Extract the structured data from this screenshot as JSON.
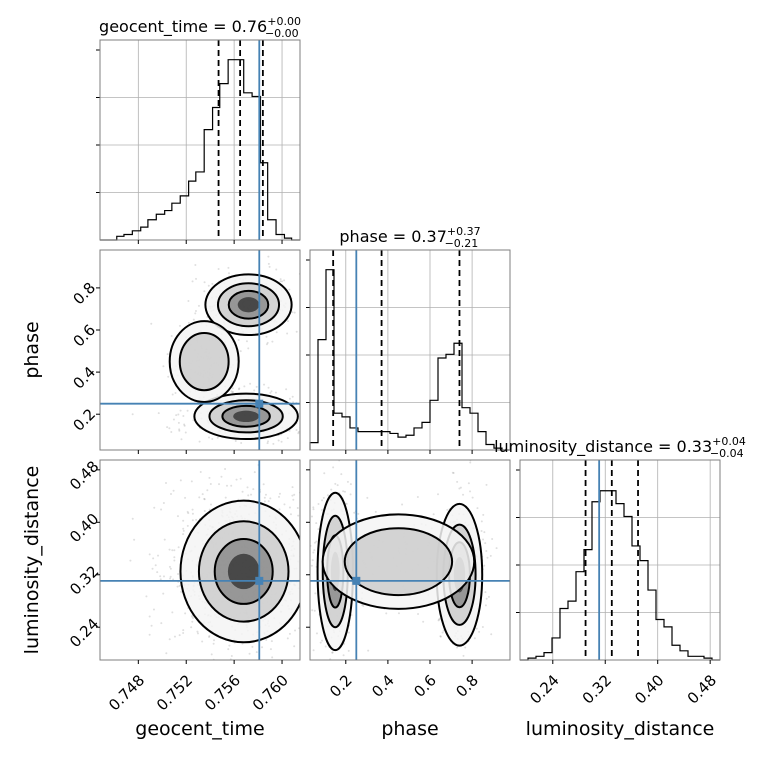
{
  "colors": {
    "truth": "#4682b4",
    "hist": "#000000",
    "grid": "#b0b0b0",
    "frame": "#7f7f7f",
    "scatter": "#808080",
    "density_levels": [
      "#f4f4f4",
      "#cccccc",
      "#8c8c8c",
      "#3a3a3a"
    ]
  },
  "chart_data": {
    "type": "corner",
    "parameters": [
      "geocent_time",
      "phase",
      "luminosity_distance"
    ],
    "axis_labels": [
      "geocent_time",
      "phase",
      "luminosity_distance"
    ],
    "ranges": {
      "geocent_time": [
        0.7448,
        0.7615
      ],
      "phase": [
        0.03,
        0.98
      ],
      "luminosity_distance": [
        0.19,
        0.495
      ]
    },
    "ticks": {
      "geocent_time": [
        0.748,
        0.752,
        0.756,
        0.76
      ],
      "phase": [
        0.2,
        0.4,
        0.6,
        0.8
      ],
      "luminosity_distance": [
        0.24,
        0.32,
        0.4,
        0.48
      ]
    },
    "tick_labels": {
      "geocent_time": [
        "0.748",
        "0.752",
        "0.756",
        "0.760"
      ],
      "phase": [
        "0.2",
        "0.4",
        "0.6",
        "0.8"
      ],
      "luminosity_distance": [
        "0.24",
        "0.32",
        "0.40",
        "0.48"
      ]
    },
    "truths": {
      "geocent_time": 0.7581,
      "phase": 0.25,
      "luminosity_distance": 0.3107
    },
    "titles": [
      {
        "param": "geocent_time",
        "label": "geocent_time = 0.76",
        "plus": "+0.00",
        "minus": "−0.00"
      },
      {
        "param": "phase",
        "label": "phase = 0.37",
        "plus": "+0.37",
        "minus": "−0.21"
      },
      {
        "param": "luminosity_distance",
        "label": "luminosity_distance = 0.33",
        "plus": "+0.04",
        "minus": "−0.04"
      }
    ],
    "quantiles": {
      "geocent_time": [
        0.7547,
        0.7565,
        0.7584
      ],
      "phase": [
        0.14,
        0.37,
        0.74
      ],
      "luminosity_distance": [
        0.29,
        0.33,
        0.37
      ]
    },
    "histograms": {
      "geocent_time": {
        "edges": [
          0.7448,
          0.7455,
          0.7462,
          0.7468,
          0.7475,
          0.7482,
          0.7488,
          0.7495,
          0.7502,
          0.7508,
          0.7515,
          0.7522,
          0.7528,
          0.7535,
          0.7542,
          0.7548,
          0.7555,
          0.7562,
          0.7568,
          0.7575,
          0.7582,
          0.7588,
          0.7595,
          0.7602,
          0.7608,
          0.7615
        ],
        "counts": [
          0,
          0,
          0.02,
          0.03,
          0.05,
          0.07,
          0.11,
          0.14,
          0.16,
          0.2,
          0.24,
          0.32,
          0.37,
          0.6,
          0.72,
          0.85,
          0.98,
          0.98,
          0.8,
          0.78,
          0.42,
          0.11,
          0.03,
          0.01,
          0
        ]
      },
      "phase": {
        "edges": [
          0.03,
          0.068,
          0.106,
          0.144,
          0.182,
          0.22,
          0.258,
          0.296,
          0.334,
          0.372,
          0.41,
          0.448,
          0.486,
          0.524,
          0.562,
          0.6,
          0.638,
          0.676,
          0.714,
          0.752,
          0.79,
          0.828,
          0.866,
          0.904,
          0.942,
          0.98
        ],
        "counts": [
          0.04,
          0.6,
          0.98,
          0.2,
          0.18,
          0.12,
          0.1,
          0.1,
          0.1,
          0.1,
          0.09,
          0.07,
          0.08,
          0.12,
          0.15,
          0.27,
          0.5,
          0.52,
          0.58,
          0.23,
          0.2,
          0.1,
          0.03,
          0.01,
          0
        ]
      },
      "luminosity_distance": {
        "edges": [
          0.19,
          0.2022,
          0.2144,
          0.2266,
          0.2388,
          0.251,
          0.2632,
          0.2754,
          0.2876,
          0.2998,
          0.312,
          0.3242,
          0.3364,
          0.3486,
          0.3608,
          0.373,
          0.3852,
          0.3974,
          0.4096,
          0.4218,
          0.434,
          0.4462,
          0.4584,
          0.4706,
          0.4828,
          0.495
        ],
        "counts": [
          0,
          0.01,
          0.02,
          0.04,
          0.12,
          0.28,
          0.32,
          0.48,
          0.6,
          0.86,
          0.92,
          0.92,
          0.85,
          0.78,
          0.62,
          0.54,
          0.38,
          0.22,
          0.18,
          0.08,
          0.05,
          0.02,
          0.02,
          0.01,
          0
        ]
      }
    },
    "grid": true
  }
}
